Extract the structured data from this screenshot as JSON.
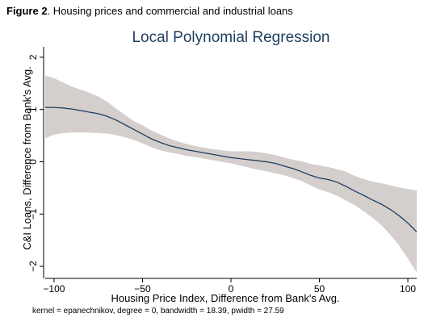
{
  "figure": {
    "number": "Figure 2",
    "caption": ". Housing prices and commercial and industrial loans"
  },
  "chart_data": {
    "type": "line",
    "title": "Local Polynomial Regression",
    "xlabel": "Housing Price Index, Difference from Bank's Avg.",
    "ylabel": "C&I Loans, Difference from Bank's Avg.",
    "xlim": [
      -105,
      105
    ],
    "ylim": [
      -2.2,
      2.2
    ],
    "xticks": [
      -100,
      -50,
      0,
      50,
      100
    ],
    "xtick_labels": [
      "−100",
      "−50",
      "0",
      "50",
      "100"
    ],
    "yticks": [
      -2,
      -1,
      0,
      1,
      2
    ],
    "ytick_labels": [
      "−2",
      "−1",
      "0",
      "1",
      "2"
    ],
    "grid": false,
    "legend": "none",
    "colors": {
      "line": "#1f3f5f",
      "band": "#d4cecc",
      "title": "#1f3f5f"
    },
    "series": [
      {
        "x": [
          -105,
          -100,
          -95,
          -90,
          -85,
          -80,
          -75,
          -70,
          -65,
          -60,
          -55,
          -50,
          -45,
          -40,
          -35,
          -30,
          -25,
          -20,
          -15,
          -10,
          -5,
          0,
          5,
          10,
          15,
          20,
          25,
          30,
          35,
          40,
          45,
          50,
          55,
          60,
          65,
          70,
          75,
          80,
          85,
          90,
          95,
          100,
          105
        ],
        "y": [
          1.04,
          1.04,
          1.03,
          1.01,
          0.98,
          0.95,
          0.92,
          0.87,
          0.8,
          0.71,
          0.62,
          0.53,
          0.44,
          0.37,
          0.31,
          0.27,
          0.23,
          0.2,
          0.17,
          0.14,
          0.11,
          0.08,
          0.06,
          0.04,
          0.02,
          0.0,
          -0.03,
          -0.08,
          -0.13,
          -0.19,
          -0.26,
          -0.31,
          -0.34,
          -0.39,
          -0.47,
          -0.56,
          -0.64,
          -0.73,
          -0.81,
          -0.91,
          -1.03,
          -1.17,
          -1.34
        ],
        "upper": [
          1.65,
          1.6,
          1.52,
          1.44,
          1.38,
          1.32,
          1.25,
          1.15,
          1.02,
          0.9,
          0.78,
          0.7,
          0.6,
          0.52,
          0.45,
          0.39,
          0.34,
          0.3,
          0.27,
          0.24,
          0.22,
          0.2,
          0.2,
          0.2,
          0.19,
          0.16,
          0.13,
          0.08,
          0.04,
          0.01,
          -0.04,
          -0.07,
          -0.1,
          -0.14,
          -0.19,
          -0.27,
          -0.33,
          -0.38,
          -0.41,
          -0.45,
          -0.49,
          -0.52,
          -0.55
        ],
        "lower": [
          0.45,
          0.52,
          0.55,
          0.56,
          0.56,
          0.56,
          0.55,
          0.54,
          0.51,
          0.47,
          0.42,
          0.35,
          0.28,
          0.22,
          0.18,
          0.15,
          0.11,
          0.09,
          0.06,
          0.03,
          0.0,
          -0.03,
          -0.07,
          -0.11,
          -0.15,
          -0.18,
          -0.22,
          -0.26,
          -0.31,
          -0.37,
          -0.45,
          -0.53,
          -0.58,
          -0.65,
          -0.74,
          -0.83,
          -0.95,
          -1.07,
          -1.21,
          -1.39,
          -1.6,
          -1.85,
          -2.12
        ]
      }
    ]
  },
  "note": "kernel = epanechnikov, degree = 0, bandwidth = 18.39, pwidth = 27.59"
}
